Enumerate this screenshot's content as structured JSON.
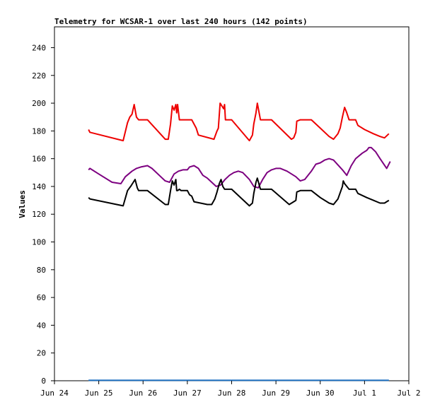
{
  "chart_data": {
    "type": "line",
    "title": "Telemetry for WCSAR-1 over last 240 hours (142 points)",
    "xlabel": "",
    "ylabel": "Values",
    "ylim": [
      0,
      255
    ],
    "xlim": [
      0,
      8
    ],
    "yticks": [
      0,
      20,
      40,
      60,
      80,
      100,
      120,
      140,
      160,
      180,
      200,
      220,
      240
    ],
    "xticks": [
      {
        "x": 0,
        "label": "Jun 24"
      },
      {
        "x": 1,
        "label": "Jun 25"
      },
      {
        "x": 2,
        "label": "Jun 26"
      },
      {
        "x": 3,
        "label": "Jun 27"
      },
      {
        "x": 4,
        "label": "Jun 28"
      },
      {
        "x": 5,
        "label": "Jun 29"
      },
      {
        "x": 6,
        "label": "Jun 30"
      },
      {
        "x": 7,
        "label": "Jul 1"
      },
      {
        "x": 8,
        "label": "Jul 2"
      }
    ],
    "grid": false,
    "series": [
      {
        "color": "#ee0000",
        "points": [
          [
            0.77,
            181
          ],
          [
            0.8,
            179
          ],
          [
            1.55,
            173
          ],
          [
            1.65,
            186
          ],
          [
            1.7,
            190
          ],
          [
            1.75,
            192
          ],
          [
            1.8,
            199
          ],
          [
            1.85,
            190
          ],
          [
            1.9,
            188
          ],
          [
            2.1,
            188
          ],
          [
            2.5,
            174
          ],
          [
            2.57,
            174
          ],
          [
            2.62,
            185
          ],
          [
            2.66,
            198
          ],
          [
            2.7,
            195
          ],
          [
            2.74,
            199
          ],
          [
            2.76,
            193
          ],
          [
            2.78,
            199
          ],
          [
            2.82,
            188
          ],
          [
            3.1,
            188
          ],
          [
            3.2,
            182
          ],
          [
            3.25,
            177
          ],
          [
            3.6,
            174
          ],
          [
            3.67,
            180
          ],
          [
            3.7,
            182
          ],
          [
            3.74,
            200
          ],
          [
            3.78,
            198
          ],
          [
            3.82,
            196
          ],
          [
            3.84,
            199
          ],
          [
            3.86,
            188
          ],
          [
            4.0,
            188
          ],
          [
            4.4,
            173
          ],
          [
            4.47,
            177
          ],
          [
            4.5,
            185
          ],
          [
            4.55,
            193
          ],
          [
            4.58,
            200
          ],
          [
            4.65,
            188
          ],
          [
            4.9,
            188
          ],
          [
            5.35,
            174
          ],
          [
            5.4,
            175
          ],
          [
            5.45,
            179
          ],
          [
            5.47,
            187
          ],
          [
            5.55,
            188
          ],
          [
            5.6,
            188
          ],
          [
            5.8,
            188
          ],
          [
            6.0,
            182
          ],
          [
            6.2,
            176
          ],
          [
            6.3,
            174
          ],
          [
            6.4,
            178
          ],
          [
            6.45,
            182
          ],
          [
            6.5,
            190
          ],
          [
            6.55,
            197
          ],
          [
            6.6,
            193
          ],
          [
            6.65,
            188
          ],
          [
            6.8,
            188
          ],
          [
            6.85,
            184
          ],
          [
            7.0,
            181
          ],
          [
            7.2,
            178
          ],
          [
            7.35,
            176
          ],
          [
            7.45,
            175
          ],
          [
            7.55,
            178
          ]
        ]
      },
      {
        "color": "#7d0080",
        "points": [
          [
            0.77,
            152
          ],
          [
            0.8,
            153
          ],
          [
            1.0,
            149
          ],
          [
            1.3,
            143
          ],
          [
            1.5,
            142
          ],
          [
            1.6,
            147
          ],
          [
            1.75,
            151
          ],
          [
            1.85,
            153
          ],
          [
            1.95,
            154
          ],
          [
            2.1,
            155
          ],
          [
            2.2,
            153
          ],
          [
            2.4,
            147
          ],
          [
            2.5,
            144
          ],
          [
            2.6,
            143
          ],
          [
            2.7,
            149
          ],
          [
            2.8,
            151
          ],
          [
            2.9,
            152
          ],
          [
            3.0,
            152
          ],
          [
            3.05,
            154
          ],
          [
            3.15,
            155
          ],
          [
            3.25,
            153
          ],
          [
            3.35,
            148
          ],
          [
            3.45,
            146
          ],
          [
            3.55,
            143
          ],
          [
            3.65,
            140
          ],
          [
            3.75,
            141
          ],
          [
            3.85,
            145
          ],
          [
            3.95,
            148
          ],
          [
            4.05,
            150
          ],
          [
            4.15,
            151
          ],
          [
            4.25,
            150
          ],
          [
            4.4,
            145
          ],
          [
            4.5,
            140
          ],
          [
            4.6,
            139
          ],
          [
            4.7,
            145
          ],
          [
            4.8,
            150
          ],
          [
            4.9,
            152
          ],
          [
            5.0,
            153
          ],
          [
            5.1,
            153
          ],
          [
            5.25,
            151
          ],
          [
            5.45,
            147
          ],
          [
            5.55,
            144
          ],
          [
            5.65,
            145
          ],
          [
            5.8,
            151
          ],
          [
            5.9,
            156
          ],
          [
            6.0,
            157
          ],
          [
            6.1,
            159
          ],
          [
            6.2,
            160
          ],
          [
            6.3,
            159
          ],
          [
            6.5,
            152
          ],
          [
            6.6,
            148
          ],
          [
            6.7,
            155
          ],
          [
            6.8,
            160
          ],
          [
            6.95,
            164
          ],
          [
            7.05,
            166
          ],
          [
            7.1,
            168
          ],
          [
            7.15,
            168
          ],
          [
            7.25,
            165
          ],
          [
            7.35,
            160
          ],
          [
            7.5,
            153
          ],
          [
            7.58,
            158
          ]
        ]
      },
      {
        "color": "#000000",
        "points": [
          [
            0.77,
            132
          ],
          [
            0.8,
            131
          ],
          [
            1.55,
            126
          ],
          [
            1.65,
            137
          ],
          [
            1.72,
            140
          ],
          [
            1.78,
            143
          ],
          [
            1.82,
            145
          ],
          [
            1.87,
            139
          ],
          [
            1.9,
            137
          ],
          [
            2.1,
            137
          ],
          [
            2.5,
            127
          ],
          [
            2.57,
            127
          ],
          [
            2.62,
            137
          ],
          [
            2.66,
            144
          ],
          [
            2.7,
            141
          ],
          [
            2.74,
            145
          ],
          [
            2.76,
            137
          ],
          [
            2.78,
            137
          ],
          [
            2.82,
            138
          ],
          [
            2.86,
            137
          ],
          [
            3.0,
            137
          ],
          [
            3.05,
            134
          ],
          [
            3.1,
            133
          ],
          [
            3.15,
            129
          ],
          [
            3.45,
            127
          ],
          [
            3.5,
            127
          ],
          [
            3.55,
            127
          ],
          [
            3.62,
            131
          ],
          [
            3.67,
            136
          ],
          [
            3.72,
            142
          ],
          [
            3.76,
            145
          ],
          [
            3.8,
            140
          ],
          [
            3.84,
            138
          ],
          [
            4.0,
            138
          ],
          [
            4.4,
            126
          ],
          [
            4.47,
            128
          ],
          [
            4.5,
            135
          ],
          [
            4.55,
            143
          ],
          [
            4.58,
            146
          ],
          [
            4.65,
            138
          ],
          [
            4.9,
            138
          ],
          [
            5.3,
            127
          ],
          [
            5.4,
            129
          ],
          [
            5.45,
            130
          ],
          [
            5.47,
            136
          ],
          [
            5.55,
            137
          ],
          [
            5.8,
            137
          ],
          [
            6.0,
            132
          ],
          [
            6.2,
            128
          ],
          [
            6.3,
            127
          ],
          [
            6.4,
            131
          ],
          [
            6.5,
            140
          ],
          [
            6.52,
            144
          ],
          [
            6.55,
            142
          ],
          [
            6.6,
            140
          ],
          [
            6.65,
            138
          ],
          [
            6.8,
            138
          ],
          [
            6.85,
            135
          ],
          [
            7.05,
            132
          ],
          [
            7.2,
            130
          ],
          [
            7.35,
            128
          ],
          [
            7.45,
            128
          ],
          [
            7.55,
            130
          ]
        ]
      },
      {
        "color": "#1c6fc0",
        "points": [
          [
            0.77,
            0.3
          ],
          [
            7.55,
            0.3
          ]
        ]
      }
    ]
  }
}
